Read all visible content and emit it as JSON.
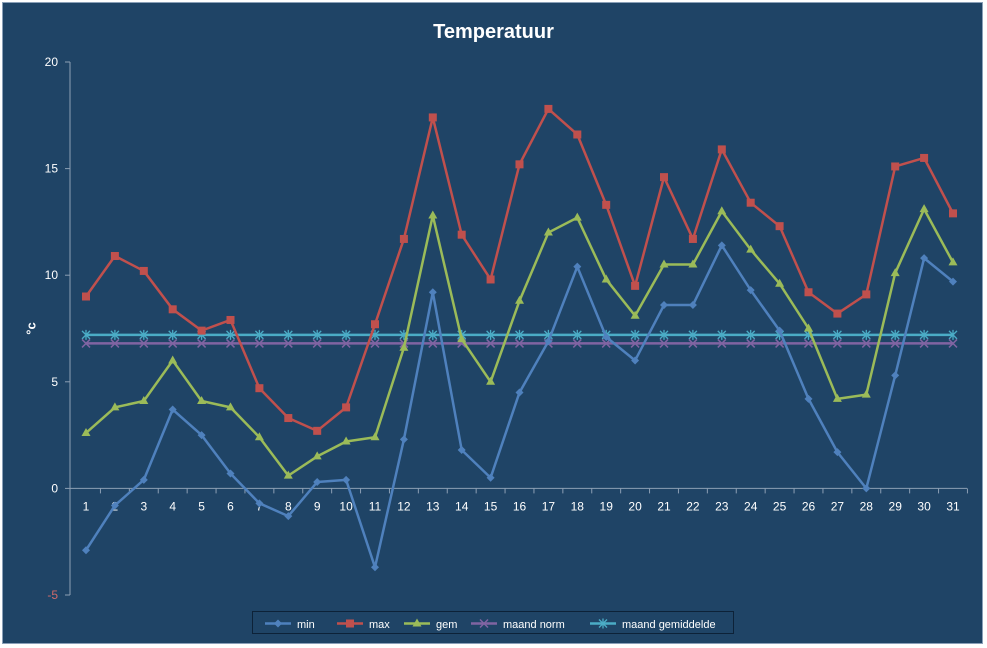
{
  "chart_data": {
    "type": "line",
    "title": "Temperatuur",
    "xlabel": "",
    "ylabel": "°c",
    "ylim": [
      -5,
      20
    ],
    "yticks": [
      -5,
      0,
      5,
      10,
      15,
      20
    ],
    "grid": false,
    "legend_position": "bottom",
    "x": [
      1,
      2,
      3,
      4,
      5,
      6,
      7,
      8,
      9,
      10,
      11,
      12,
      13,
      14,
      15,
      16,
      17,
      18,
      19,
      20,
      21,
      22,
      23,
      24,
      25,
      26,
      27,
      28,
      29,
      30,
      31
    ],
    "series": [
      {
        "name": "min",
        "color": "#4f81bd",
        "marker": "diamond",
        "values": [
          -2.9,
          -0.8,
          0.4,
          3.7,
          2.5,
          0.7,
          -0.7,
          -1.3,
          0.3,
          0.4,
          -3.7,
          2.3,
          9.2,
          1.8,
          0.5,
          4.5,
          6.9,
          10.4,
          7.1,
          6.0,
          8.6,
          8.6,
          11.4,
          9.3,
          7.4,
          4.2,
          1.7,
          0.0,
          5.3,
          10.8,
          9.7
        ]
      },
      {
        "name": "max",
        "color": "#c0504d",
        "marker": "square",
        "values": [
          9.0,
          10.9,
          10.2,
          8.4,
          7.4,
          7.9,
          4.7,
          3.3,
          2.7,
          3.8,
          7.7,
          11.7,
          17.4,
          11.9,
          9.8,
          15.2,
          17.8,
          16.6,
          13.3,
          9.5,
          14.6,
          11.7,
          15.9,
          13.4,
          12.3,
          9.2,
          8.2,
          9.1,
          15.1,
          15.5,
          12.9
        ]
      },
      {
        "name": "gem",
        "color": "#9bbb59",
        "marker": "triangle",
        "values": [
          2.6,
          3.8,
          4.1,
          6.0,
          4.1,
          3.8,
          2.4,
          0.6,
          1.5,
          2.2,
          2.4,
          6.6,
          12.8,
          7.0,
          5.0,
          8.8,
          12.0,
          12.7,
          9.8,
          8.1,
          10.5,
          10.5,
          13.0,
          11.2,
          9.6,
          7.5,
          4.2,
          4.4,
          10.1,
          13.1,
          10.6
        ]
      },
      {
        "name": "maand norm",
        "color": "#8064a2",
        "marker": "x",
        "values": [
          6.8,
          6.8,
          6.8,
          6.8,
          6.8,
          6.8,
          6.8,
          6.8,
          6.8,
          6.8,
          6.8,
          6.8,
          6.8,
          6.8,
          6.8,
          6.8,
          6.8,
          6.8,
          6.8,
          6.8,
          6.8,
          6.8,
          6.8,
          6.8,
          6.8,
          6.8,
          6.8,
          6.8,
          6.8,
          6.8,
          6.8
        ]
      },
      {
        "name": "maand gemiddelde",
        "color": "#4bacc6",
        "marker": "star",
        "values": [
          7.2,
          7.2,
          7.2,
          7.2,
          7.2,
          7.2,
          7.2,
          7.2,
          7.2,
          7.2,
          7.2,
          7.2,
          7.2,
          7.2,
          7.2,
          7.2,
          7.2,
          7.2,
          7.2,
          7.2,
          7.2,
          7.2,
          7.2,
          7.2,
          7.2,
          7.2,
          7.2,
          7.2,
          7.2,
          7.2,
          7.2
        ]
      }
    ]
  }
}
